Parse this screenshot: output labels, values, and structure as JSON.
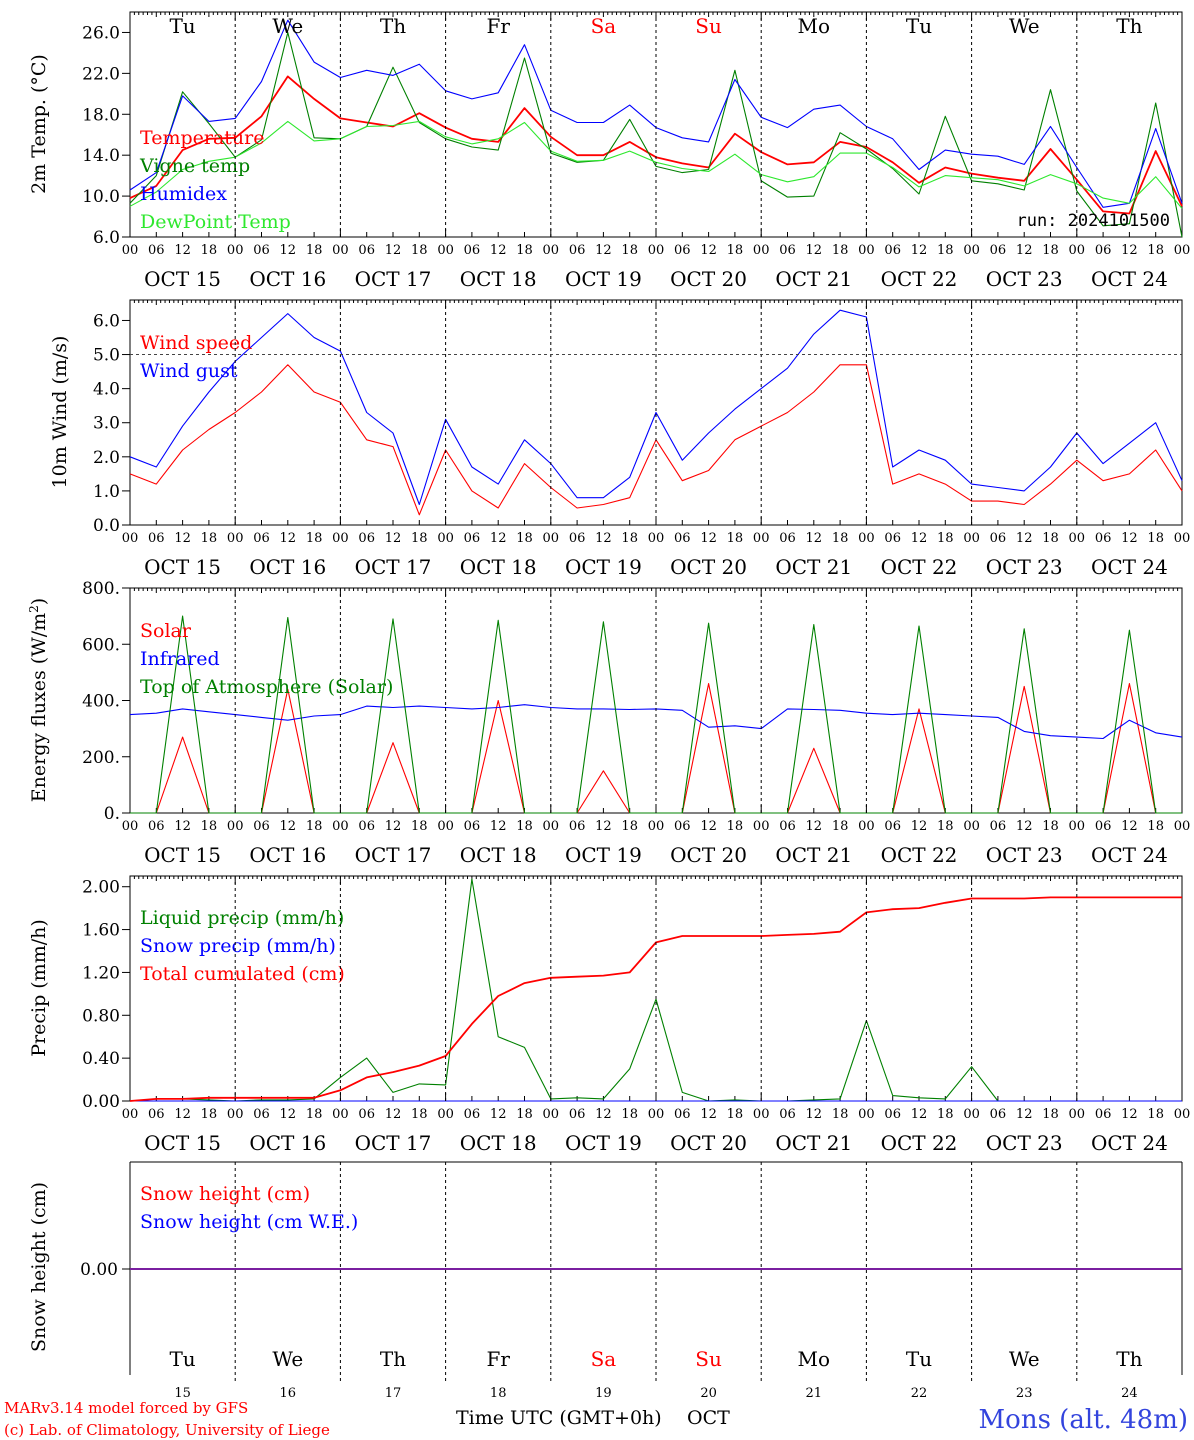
{
  "days": {
    "weekday_labels": [
      "Tu",
      "We",
      "Th",
      "Fr",
      "Sa",
      "Su",
      "Mo",
      "Tu",
      "We",
      "Th"
    ],
    "weekend_flags": [
      false,
      false,
      false,
      false,
      true,
      true,
      false,
      false,
      false,
      false
    ],
    "date_labels": [
      "OCT 15",
      "OCT 16",
      "OCT 17",
      "OCT 18",
      "OCT 19",
      "OCT 20",
      "OCT 21",
      "OCT 22",
      "OCT 23",
      "OCT 24"
    ],
    "hour_labels": [
      "00",
      "06",
      "12",
      "18"
    ],
    "end_hour_label": "00",
    "day_numbers": [
      "15",
      "16",
      "17",
      "18",
      "19",
      "20",
      "21",
      "22",
      "23",
      "24"
    ]
  },
  "footer": {
    "xlabel": "Time UTC (GMT+0h)",
    "month": "OCT",
    "credit1": "MARv3.14 model forced by GFS",
    "credit2": "(c) Lab. of Climatology, University of Liege",
    "location": "Mons (alt. 48m)"
  },
  "colors": {
    "red": "#ff0000",
    "green": "#008000",
    "blue": "#0000ff",
    "lime": "#2ee82e",
    "purple": "#7a1fa0",
    "location": "#3344dd"
  },
  "chart_data": [
    {
      "type": "line",
      "ylabel": "2m Temp. (°C)",
      "ylim": [
        6,
        28
      ],
      "yticks": [
        6,
        10,
        14,
        18,
        22,
        26
      ],
      "ytick_labels": [
        "6.0",
        "10.0",
        "14.0",
        "18.0",
        "22.0",
        "26.0"
      ],
      "annotation": "run: 2024101500",
      "x_hours": [
        0,
        6,
        12,
        18,
        24,
        30,
        36,
        42,
        48,
        54,
        60,
        66,
        72,
        78,
        84,
        90,
        96,
        102,
        108,
        114,
        120,
        126,
        132,
        138,
        144,
        150,
        156,
        162,
        168,
        174,
        180,
        186,
        192,
        198,
        204,
        210,
        216,
        222,
        228,
        234,
        240
      ],
      "series": [
        {
          "name": "Temperature",
          "color": "#ff0000",
          "values": [
            9.8,
            11,
            14.5,
            15.6,
            15.7,
            17.8,
            21.7,
            19.5,
            17.6,
            17.2,
            16.8,
            18.1,
            16.7,
            15.6,
            15.3,
            18.6,
            15.8,
            14,
            14,
            15.3,
            13.8,
            13.2,
            12.8,
            16.1,
            14.3,
            13.1,
            13.3,
            15.3,
            14.8,
            13.3,
            11.3,
            12.8,
            12.2,
            11.8,
            11.5,
            14.6,
            11.6,
            8.5,
            8.3,
            14.4,
            9
          ]
        },
        {
          "name": "Vigne temp",
          "color": "#008000",
          "values": [
            9.3,
            12,
            20.2,
            17.1,
            13.8,
            15.5,
            26,
            15.7,
            15.6,
            16.8,
            22.6,
            17.2,
            15.6,
            14.8,
            14.5,
            23.5,
            14.2,
            13.3,
            13.5,
            17.5,
            12.9,
            12.3,
            12.6,
            22.3,
            11.5,
            9.9,
            10,
            16.2,
            14.6,
            12.7,
            10.2,
            17.8,
            11.5,
            11.2,
            10.6,
            20.4,
            10.5,
            7.1,
            7.3,
            19.1,
            6
          ]
        },
        {
          "name": "Humidex",
          "color": "#0000ff",
          "values": [
            10.6,
            12.3,
            19.8,
            17.3,
            17.6,
            21.2,
            27.2,
            23.1,
            21.6,
            22.3,
            21.8,
            22.9,
            20.3,
            19.5,
            20.1,
            24.8,
            18.4,
            17.2,
            17.2,
            18.9,
            16.7,
            15.7,
            15.3,
            21.4,
            17.7,
            16.7,
            18.5,
            18.9,
            16.8,
            15.6,
            12.6,
            14.5,
            14.1,
            13.9,
            13.1,
            16.8,
            12.8,
            8.9,
            9.3,
            16.6,
            9.3
          ]
        },
        {
          "name": "DewPoint Temp",
          "color": "#2ee82e",
          "values": [
            9,
            10.4,
            12.6,
            13.4,
            13.8,
            15.2,
            17.3,
            15.4,
            15.6,
            16.8,
            16.9,
            17.3,
            15.8,
            15.1,
            15.6,
            17.2,
            14.4,
            13.4,
            13.5,
            14.4,
            13.3,
            12.7,
            12.4,
            14.1,
            12.1,
            11.4,
            11.9,
            14.2,
            14.2,
            12.8,
            10.9,
            12,
            11.8,
            11.6,
            11,
            12.1,
            11.2,
            9.8,
            9.3,
            11.9,
            8.8
          ]
        }
      ]
    },
    {
      "type": "line",
      "ylabel": "10m Wind (m/s)",
      "ylim": [
        0,
        6.6
      ],
      "yticks": [
        0,
        1,
        2,
        3,
        4,
        5,
        6
      ],
      "ytick_labels": [
        "0.0",
        "1.0",
        "2.0",
        "3.0",
        "4.0",
        "5.0",
        "6.0"
      ],
      "reference_line": 5.0,
      "x_hours": [
        0,
        6,
        12,
        18,
        24,
        30,
        36,
        42,
        48,
        54,
        60,
        66,
        72,
        78,
        84,
        90,
        96,
        102,
        108,
        114,
        120,
        126,
        132,
        138,
        144,
        150,
        156,
        162,
        168,
        174,
        180,
        186,
        192,
        198,
        204,
        210,
        216,
        222,
        228,
        234,
        240
      ],
      "series": [
        {
          "name": "Wind speed",
          "color": "#ff0000",
          "values": [
            1.5,
            1.2,
            2.2,
            2.8,
            3.3,
            3.9,
            4.7,
            3.9,
            3.6,
            2.5,
            2.3,
            0.3,
            2.2,
            1.0,
            0.5,
            1.8,
            1.1,
            0.5,
            0.6,
            0.8,
            2.5,
            1.3,
            1.6,
            2.5,
            2.9,
            3.3,
            3.9,
            4.7,
            4.7,
            1.2,
            1.5,
            1.2,
            0.7,
            0.7,
            0.6,
            1.2,
            1.9,
            1.3,
            1.5,
            2.2,
            1.0
          ]
        },
        {
          "name": "Wind gust",
          "color": "#0000ff",
          "values": [
            2.0,
            1.7,
            2.9,
            3.9,
            4.8,
            5.5,
            6.2,
            5.5,
            5.1,
            3.3,
            2.7,
            0.6,
            3.1,
            1.7,
            1.2,
            2.5,
            1.8,
            0.8,
            0.8,
            1.4,
            3.3,
            1.9,
            2.7,
            3.4,
            4.0,
            4.6,
            5.6,
            6.3,
            6.1,
            1.7,
            2.2,
            1.9,
            1.2,
            1.1,
            1.0,
            1.7,
            2.7,
            1.8,
            2.4,
            3.0,
            1.3
          ]
        }
      ]
    },
    {
      "type": "line",
      "ylabel": "Energy fluxes (W/m2)",
      "ylim": [
        0,
        800
      ],
      "yticks": [
        0,
        200,
        400,
        600,
        800
      ],
      "ytick_labels": [
        "0.",
        "200.",
        "400.",
        "600.",
        "800."
      ],
      "x_hours": [
        0,
        6,
        12,
        18,
        24,
        30,
        36,
        42,
        48,
        54,
        60,
        66,
        72,
        78,
        84,
        90,
        96,
        102,
        108,
        114,
        120,
        126,
        132,
        138,
        144,
        150,
        156,
        162,
        168,
        174,
        180,
        186,
        192,
        198,
        204,
        210,
        216,
        222,
        228,
        234,
        240
      ],
      "series": [
        {
          "name": "Solar",
          "color": "#ff0000",
          "values": [
            0,
            0,
            270,
            0,
            0,
            0,
            440,
            0,
            0,
            0,
            250,
            0,
            0,
            0,
            400,
            0,
            0,
            0,
            150,
            0,
            0,
            0,
            460,
            0,
            0,
            0,
            230,
            0,
            0,
            0,
            370,
            0,
            0,
            0,
            450,
            0,
            0,
            0,
            460,
            0,
            0
          ]
        },
        {
          "name": "Infrared",
          "color": "#0000ff",
          "values": [
            350,
            355,
            370,
            360,
            350,
            340,
            330,
            345,
            350,
            380,
            375,
            380,
            375,
            370,
            375,
            385,
            375,
            370,
            370,
            368,
            370,
            365,
            305,
            310,
            300,
            370,
            368,
            365,
            355,
            350,
            355,
            350,
            345,
            340,
            290,
            275,
            270,
            265,
            330,
            285,
            270
          ]
        },
        {
          "name": "Top of Atmosphere (Solar)",
          "color": "#008000",
          "values": [
            0,
            0,
            700,
            0,
            0,
            0,
            695,
            0,
            0,
            0,
            690,
            0,
            0,
            0,
            685,
            0,
            0,
            0,
            680,
            0,
            0,
            0,
            675,
            0,
            0,
            0,
            670,
            0,
            0,
            0,
            665,
            0,
            0,
            0,
            655,
            0,
            0,
            0,
            650,
            0,
            0
          ]
        }
      ]
    },
    {
      "type": "line",
      "ylabel": "Precip (mm/h)",
      "ylim": [
        0,
        2.1
      ],
      "yticks": [
        0,
        0.4,
        0.8,
        1.2,
        1.6,
        2.0
      ],
      "ytick_labels": [
        "0.00",
        "0.40",
        "0.80",
        "1.20",
        "1.60",
        "2.00"
      ],
      "x_hours": [
        0,
        6,
        12,
        18,
        24,
        30,
        36,
        42,
        48,
        54,
        60,
        66,
        72,
        78,
        84,
        90,
        96,
        102,
        108,
        114,
        120,
        126,
        132,
        138,
        144,
        150,
        156,
        162,
        168,
        174,
        180,
        186,
        192,
        198,
        204,
        210,
        216,
        222,
        228,
        234,
        240
      ],
      "series": [
        {
          "name": "Liquid precip (mm/h)",
          "color": "#008000",
          "values": [
            0,
            0.02,
            0.02,
            0.01,
            0,
            0.01,
            0.01,
            0.02,
            0.22,
            0.4,
            0.08,
            0.16,
            0.15,
            2.07,
            0.6,
            0.5,
            0.02,
            0.03,
            0.02,
            0.3,
            0.95,
            0.08,
            0,
            0.01,
            0,
            0,
            0.01,
            0.02,
            0.75,
            0.05,
            0.03,
            0.02,
            0.32,
            0,
            0,
            0,
            0,
            0,
            0,
            0,
            0
          ]
        },
        {
          "name": "Snow precip (mm/h)",
          "color": "#0000ff",
          "values": [
            0,
            0,
            0,
            0,
            0,
            0,
            0,
            0,
            0,
            0,
            0,
            0,
            0,
            0,
            0,
            0,
            0,
            0,
            0,
            0,
            0,
            0,
            0,
            0,
            0,
            0,
            0,
            0,
            0,
            0,
            0,
            0,
            0,
            0,
            0,
            0,
            0,
            0,
            0,
            0,
            0
          ]
        },
        {
          "name": "Total cumulated (cm)",
          "color": "#ff0000",
          "values": [
            0,
            0.02,
            0.02,
            0.03,
            0.03,
            0.03,
            0.03,
            0.03,
            0.1,
            0.22,
            0.27,
            0.33,
            0.42,
            0.72,
            0.98,
            1.1,
            1.15,
            1.16,
            1.17,
            1.2,
            1.48,
            1.54,
            1.54,
            1.54,
            1.54,
            1.55,
            1.56,
            1.58,
            1.76,
            1.79,
            1.8,
            1.85,
            1.89,
            1.89,
            1.89,
            1.9,
            1.9,
            1.9,
            1.9,
            1.9,
            1.9
          ]
        }
      ]
    },
    {
      "type": "line",
      "ylabel": "Snow height (cm)",
      "ytick_labels": [
        "0.00"
      ],
      "series": [
        {
          "name": "Snow height (cm)",
          "color": "#ff0000",
          "values": [
            0,
            0
          ]
        },
        {
          "name": "Snow height (cm W.E.)",
          "color": "#0000ff",
          "values": [
            0,
            0
          ]
        }
      ]
    }
  ]
}
